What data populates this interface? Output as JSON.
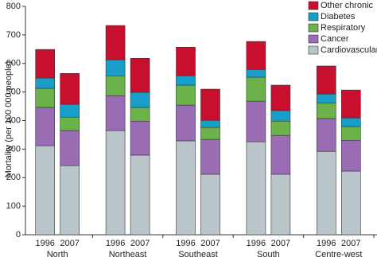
{
  "chart_data": {
    "type": "stacked_bar",
    "y_label": "Mortality (per 100 000 people)",
    "categories": [
      "1996",
      "2007",
      "1996",
      "2007",
      "1996",
      "2007",
      "1996",
      "2007",
      "1996",
      "2007"
    ],
    "groups": [
      "North",
      "Northeast",
      "Southeast",
      "South",
      "Centre-west"
    ],
    "series": [
      {
        "name": "Cardiovascular",
        "color": "#b9c5c9",
        "values": [
          312,
          242,
          365,
          279,
          329,
          212,
          326,
          212,
          292,
          223
        ]
      },
      {
        "name": "Cancer",
        "color": "#9a6cb4",
        "values": [
          134,
          123,
          122,
          119,
          125,
          122,
          142,
          136,
          115,
          108
        ]
      },
      {
        "name": "Respiratory",
        "color": "#6cb24a",
        "values": [
          67,
          47,
          70,
          48,
          70,
          42,
          84,
          50,
          55,
          48
        ]
      },
      {
        "name": "Diabetes",
        "color": "#189fc9",
        "values": [
          36,
          45,
          56,
          53,
          33,
          25,
          27,
          37,
          31,
          30
        ]
      },
      {
        "name": "Other chronic",
        "color": "#c8102e",
        "values": [
          100,
          108,
          120,
          119,
          100,
          109,
          98,
          89,
          98,
          98
        ]
      }
    ],
    "ylim": [
      0,
      800
    ],
    "yticks": [
      0,
      100,
      200,
      300,
      400,
      500,
      600,
      700,
      800
    ],
    "legend": "top-right"
  }
}
